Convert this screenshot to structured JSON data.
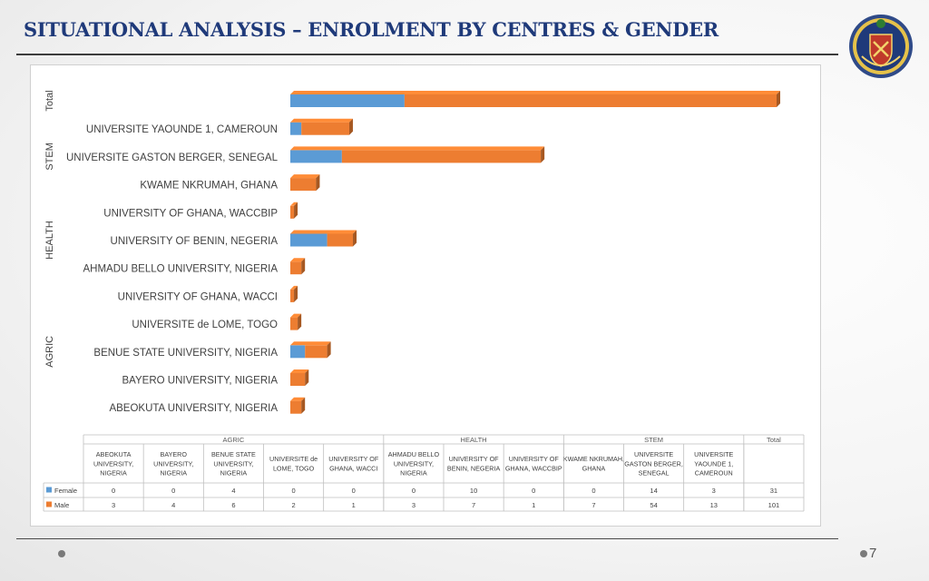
{
  "slide": {
    "title": "SITUATIONAL ANALYSIS – ENROLMENT BY CENTRES & GENDER",
    "page_number": "7"
  },
  "colors": {
    "female": "#5b9bd5",
    "male": "#ed7d31",
    "title": "#1f3a7a"
  },
  "icons": {
    "seal": "university-crest-icon"
  },
  "chart_data": {
    "type": "bar",
    "orientation": "horizontal-stacked",
    "groups": [
      {
        "name": "AGRIC",
        "centres": [
          {
            "label": "ABEOKUTA UNIVERSITY, NIGERIA",
            "table_label": "ABEOKUTA UNIVERSITY, NIGERIA",
            "female": 0,
            "male": 3
          },
          {
            "label": "BAYERO UNIVERSITY, NIGERIA",
            "table_label": "BAYERO UNIVERSITY, NIGERIA",
            "female": 0,
            "male": 4
          },
          {
            "label": "BENUE STATE UNIVERSITY, NIGERIA",
            "table_label": "BENUE STATE UNIVERSITY, NIGERIA",
            "female": 4,
            "male": 6
          },
          {
            "label": "UNIVERSITE de LOME, TOGO",
            "table_label": "UNIVERSITE de LOME, TOGO",
            "female": 0,
            "male": 2
          },
          {
            "label": "UNIVERSITY OF GHANA, WACCI",
            "table_label": "UNIVERSITY OF GHANA, WACCI",
            "female": 0,
            "male": 1
          }
        ]
      },
      {
        "name": "HEALTH",
        "centres": [
          {
            "label": "AHMADU BELLO UNIVERSITY, NIGERIA",
            "table_label": "AHMADU BELLO UNIVERSITY, NIGERIA",
            "female": 0,
            "male": 3
          },
          {
            "label": "UNIVERSITY OF BENIN, NEGERIA",
            "table_label": "UNIVERSITY OF BENIN, NEGERIA",
            "female": 10,
            "male": 7
          },
          {
            "label": "UNIVERSITY OF GHANA, WACCBIP",
            "table_label": "UNIVERSITY OF GHANA, WACCBIP",
            "female": 0,
            "male": 1
          }
        ]
      },
      {
        "name": "STEM",
        "centres": [
          {
            "label": "KWAME NKRUMAH, GHANA",
            "table_label": "KWAME NKRUMAH, GHANA",
            "female": 0,
            "male": 7
          },
          {
            "label": "UNIVERSITE GASTON BERGER, SENEGAL",
            "table_label": "UNIVERSITE GASTON BERGER, SENEGAL",
            "female": 14,
            "male": 54
          },
          {
            "label": "UNIVERSITE YAOUNDE 1, CAMEROUN",
            "table_label": "UNIVERSITE YAOUNDE 1, CAMEROUN",
            "female": 3,
            "male": 13
          }
        ]
      },
      {
        "name": "Total",
        "centres": [
          {
            "label": "",
            "table_label": "",
            "female": 31,
            "male": 101
          }
        ]
      }
    ],
    "series": [
      {
        "name": "Female",
        "color": "#5b9bd5"
      },
      {
        "name": "Male",
        "color": "#ed7d31"
      }
    ],
    "xlim": [
      0,
      132
    ],
    "grid": false,
    "legend": "table-left",
    "data_table": true
  }
}
